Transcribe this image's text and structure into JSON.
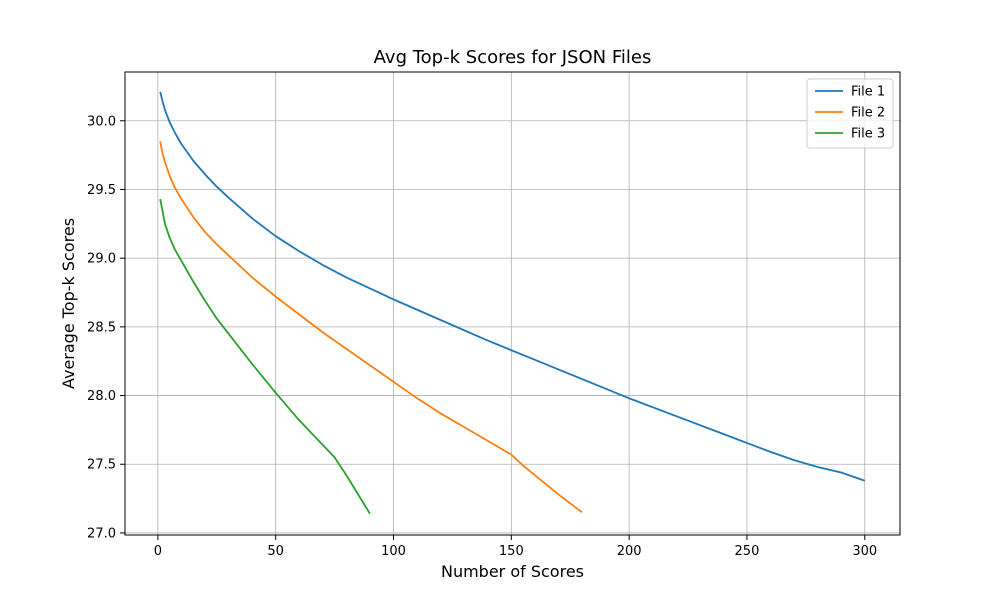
{
  "chart_data": {
    "type": "line",
    "title": "Avg Top-k Scores for JSON Files",
    "xlabel": "Number of Scores",
    "ylabel": "Average Top-k Scores",
    "xlim": [
      -13.95,
      314.95
    ],
    "ylim": [
      26.985,
      30.355
    ],
    "xticks": [
      0,
      50,
      100,
      150,
      200,
      250,
      300
    ],
    "yticks": [
      27.0,
      27.5,
      28.0,
      28.5,
      29.0,
      29.5,
      30.0
    ],
    "ytick_labels": [
      "27.0",
      "27.5",
      "28.0",
      "28.5",
      "29.0",
      "29.5",
      "30.0"
    ],
    "grid": true,
    "legend_position": "top-right",
    "series": [
      {
        "name": "File 1",
        "color": "#1f77b4",
        "x": [
          1,
          2,
          3,
          5,
          7,
          10,
          15,
          20,
          25,
          30,
          40,
          50,
          60,
          70,
          80,
          90,
          100,
          120,
          140,
          160,
          180,
          200,
          220,
          240,
          260,
          270,
          280,
          290,
          295,
          300
        ],
        "y": [
          30.21,
          30.14,
          30.08,
          29.99,
          29.92,
          29.83,
          29.71,
          29.61,
          29.52,
          29.44,
          29.29,
          29.16,
          29.05,
          28.95,
          28.86,
          28.78,
          28.7,
          28.55,
          28.4,
          28.26,
          28.12,
          27.98,
          27.85,
          27.72,
          27.59,
          27.53,
          27.48,
          27.44,
          27.41,
          27.38
        ]
      },
      {
        "name": "File 2",
        "color": "#ff7f0e",
        "x": [
          1,
          2,
          3,
          5,
          7,
          10,
          15,
          20,
          25,
          30,
          40,
          50,
          60,
          70,
          80,
          90,
          100,
          110,
          120,
          130,
          140,
          145,
          150,
          155,
          160,
          170,
          180
        ],
        "y": [
          29.85,
          29.76,
          29.7,
          29.6,
          29.52,
          29.43,
          29.3,
          29.19,
          29.1,
          29.02,
          28.86,
          28.72,
          28.59,
          28.46,
          28.34,
          28.22,
          28.1,
          27.98,
          27.87,
          27.77,
          27.67,
          27.62,
          27.57,
          27.49,
          27.42,
          27.28,
          27.15
        ]
      },
      {
        "name": "File 3",
        "color": "#2ca02c",
        "x": [
          1,
          2,
          3,
          5,
          7,
          10,
          15,
          20,
          25,
          30,
          40,
          50,
          60,
          70,
          75,
          80,
          85,
          90
        ],
        "y": [
          29.43,
          29.34,
          29.25,
          29.15,
          29.07,
          28.98,
          28.83,
          28.69,
          28.56,
          28.45,
          28.23,
          28.02,
          27.82,
          27.64,
          27.55,
          27.42,
          27.28,
          27.14
        ]
      }
    ]
  }
}
